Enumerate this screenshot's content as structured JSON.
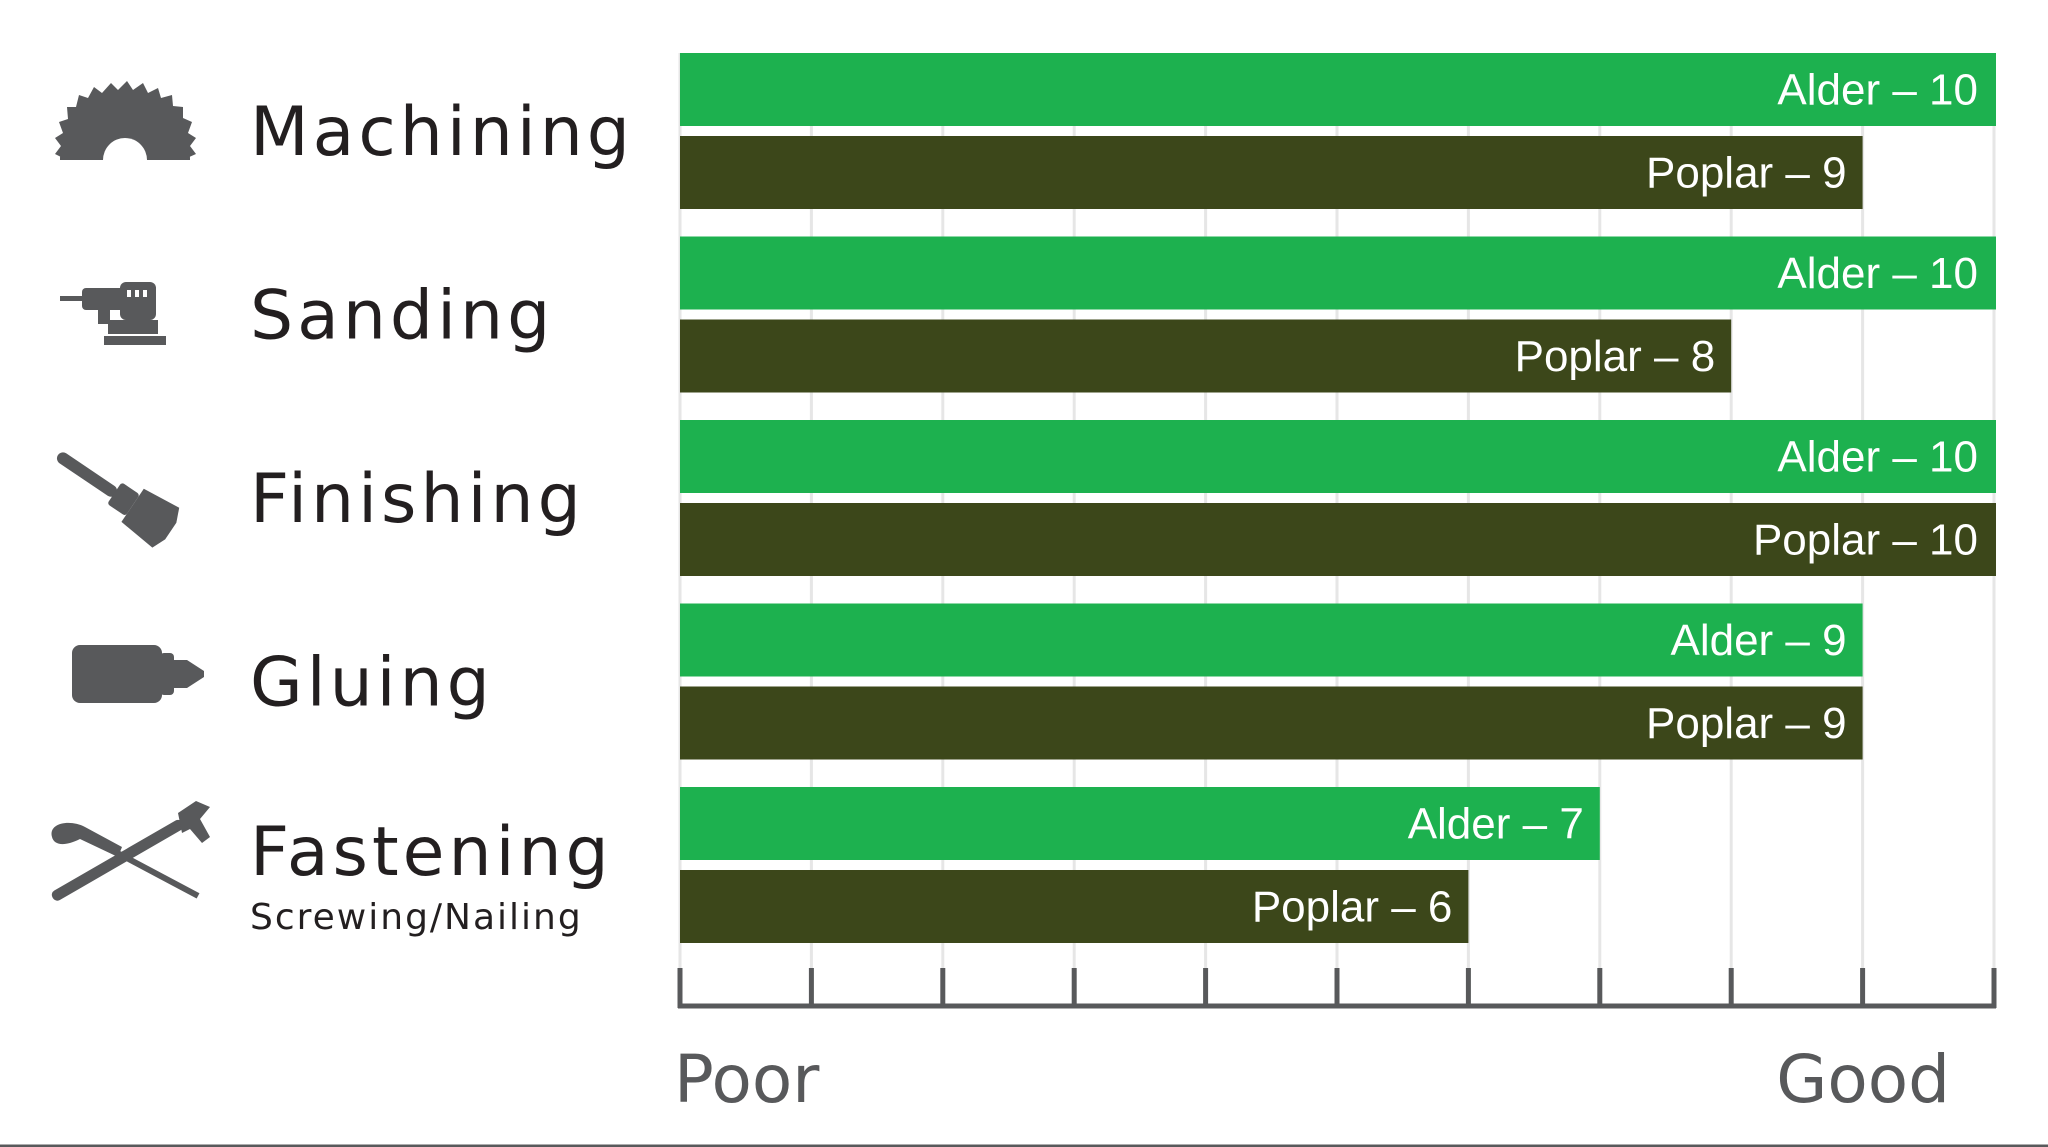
{
  "chart_data": {
    "type": "bar",
    "orientation": "horizontal",
    "categories": [
      {
        "label": "Machining",
        "sublabel": "",
        "icon": "saw-blade-icon"
      },
      {
        "label": "Sanding",
        "sublabel": "",
        "icon": "orbital-sander-icon"
      },
      {
        "label": "Finishing",
        "sublabel": "",
        "icon": "paintbrush-icon"
      },
      {
        "label": "Gluing",
        "sublabel": "",
        "icon": "glue-bottle-icon"
      },
      {
        "label": "Fastening",
        "sublabel": "Screwing/Nailing",
        "icon": "screwdriver-hammer-icon"
      }
    ],
    "series": [
      {
        "name": "Alder",
        "color": "#1db14f",
        "values": [
          10,
          10,
          10,
          9,
          7
        ],
        "labels": [
          "Alder – 10",
          "Alder – 10",
          "Alder – 10",
          "Alder – 9",
          "Alder – 7"
        ]
      },
      {
        "name": "Poplar",
        "color": "#3c471a",
        "values": [
          9,
          8,
          10,
          9,
          6
        ],
        "labels": [
          "Poplar – 9",
          "Poplar – 8",
          "Poplar – 10",
          "Poplar – 9",
          "Poplar – 6"
        ]
      }
    ],
    "xlim": [
      0,
      10
    ],
    "x_ticks": [
      0,
      1,
      2,
      3,
      4,
      5,
      6,
      7,
      8,
      9,
      10
    ],
    "x_start_label": "Poor",
    "x_end_label": "Good",
    "grid": true
  }
}
